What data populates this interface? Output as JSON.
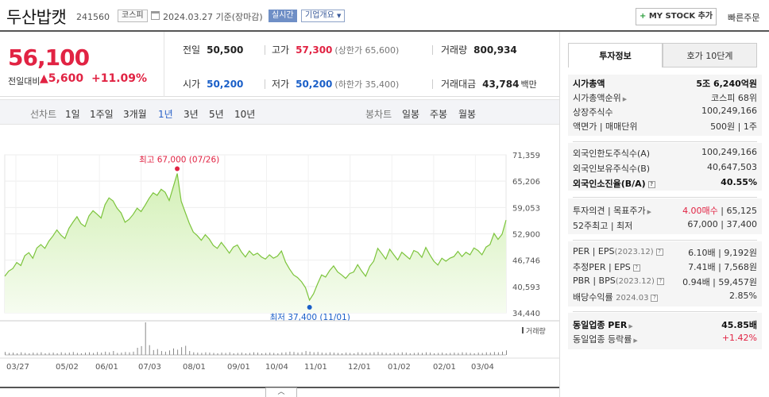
{
  "header": {
    "stock_name": "두산밥캣",
    "stock_code": "241560",
    "market": "코스피",
    "date_text": "2024.03.27 기준(장마감)",
    "realtime": "실시간",
    "company_info": "기업개요",
    "mystock_plus": "+",
    "mystock": "MY STOCK 추가",
    "quick_order": "빠른주문"
  },
  "price": {
    "current": "56,100",
    "change_label": "전일대비",
    "change_arrow": "▲",
    "change_value": "5,600",
    "change_pct": "+11.09%"
  },
  "stats": {
    "prev_close_label": "전일",
    "prev_close": "50,500",
    "high_label": "고가",
    "high": "57,300",
    "high_sub": "(상한가 65,600)",
    "volume_label": "거래량",
    "volume": "800,934",
    "open_label": "시가",
    "open": "50,200",
    "low_label": "저가",
    "low": "50,200",
    "low_sub": "(하한가 35,400)",
    "amount_label": "거래대금",
    "amount": "43,784",
    "amount_unit": "백만"
  },
  "tabs": {
    "line_label": "선차트",
    "line_items": [
      "1일",
      "1주일",
      "3개월",
      "1년",
      "3년",
      "5년",
      "10년"
    ],
    "active": "1년",
    "candle_label": "봉차트",
    "candle_items": [
      "일봉",
      "주봉",
      "월봉"
    ]
  },
  "chart_data": {
    "type": "area",
    "y_ticks": [
      "71,359",
      "65,206",
      "59,053",
      "52,900",
      "46,746",
      "40,593",
      "34,440"
    ],
    "ylim": [
      34440,
      71359
    ],
    "x_ticks": [
      "03/27",
      "05/02",
      "06/01",
      "07/03",
      "08/01",
      "09/01",
      "10/04",
      "11/01",
      "12/01",
      "01/02",
      "02/01",
      "03/04"
    ],
    "series": [
      {
        "values": [
          43000,
          44200,
          44800,
          46200,
          45500,
          47800,
          48500,
          47200,
          49600,
          50400,
          49500,
          51200,
          52400,
          53800,
          52600,
          51800,
          54200,
          55600,
          56900,
          55300,
          54600,
          57100,
          58300,
          57500,
          56600,
          59700,
          61300,
          60600,
          58900,
          57800,
          55600,
          56300,
          57400,
          58900,
          58100,
          59600,
          61200,
          62500,
          61900,
          63300,
          62600,
          60700,
          63800,
          67000,
          60500,
          57900,
          55400,
          53300,
          52500,
          51400,
          52700,
          51700,
          50200,
          49500,
          50900,
          49700,
          48400,
          49800,
          50300,
          48700,
          47500,
          48900,
          47900,
          48400,
          47500,
          47000,
          48000,
          47200,
          47700,
          48900,
          46300,
          44700,
          43300,
          42700,
          41700,
          40300,
          37400,
          38900,
          41200,
          43300,
          42800,
          44300,
          45400,
          44000,
          43300,
          42500,
          43600,
          44000,
          45700,
          44200,
          43000,
          45300,
          46500,
          49500,
          48300,
          47000,
          49300,
          48000,
          46800,
          48600,
          47800,
          47000,
          49000,
          48600,
          47400,
          49700,
          48000,
          46500,
          45600,
          47200,
          46500,
          47200,
          47600,
          48800,
          47600,
          48600,
          48000,
          49600,
          49000,
          48000,
          49800,
          50400,
          53000,
          51600,
          52800,
          56100
        ]
      }
    ],
    "high_label": "최고 67,000 (07/26)",
    "low_label": "최저 37,400 (11/01)",
    "volume_legend": "거래량",
    "volume": [
      0.09,
      0.06,
      0.07,
      0.05,
      0.08,
      0.06,
      0.05,
      0.07,
      0.06,
      0.08,
      0.05,
      0.06,
      0.07,
      0.05,
      0.08,
      0.06,
      0.07,
      0.09,
      0.06,
      0.05,
      0.07,
      0.08,
      0.06,
      0.09,
      0.07,
      0.1,
      0.08,
      0.12,
      0.06,
      0.07,
      0.09,
      0.08,
      0.1,
      0.22,
      0.27,
      1.0,
      0.3,
      0.15,
      0.18,
      0.12,
      0.1,
      0.14,
      0.2,
      0.16,
      0.24,
      0.28,
      0.12,
      0.08,
      0.07,
      0.06,
      0.08,
      0.07,
      0.06,
      0.05,
      0.07,
      0.06,
      0.08,
      0.05,
      0.06,
      0.07,
      0.05,
      0.06,
      0.08,
      0.07,
      0.05,
      0.06,
      0.07,
      0.06,
      0.05,
      0.07,
      0.08,
      0.1,
      0.09,
      0.07,
      0.08,
      0.12,
      0.1,
      0.08,
      0.09,
      0.07,
      0.06,
      0.08,
      0.07,
      0.06,
      0.05,
      0.07,
      0.06,
      0.05,
      0.08,
      0.07,
      0.06,
      0.07,
      0.08,
      0.09,
      0.07,
      0.06,
      0.05,
      0.07,
      0.06,
      0.08,
      0.07,
      0.05,
      0.06,
      0.07,
      0.06,
      0.08,
      0.07,
      0.05,
      0.06,
      0.07,
      0.05,
      0.06,
      0.07,
      0.06,
      0.08,
      0.07,
      0.06,
      0.05,
      0.07,
      0.06,
      0.08,
      0.07,
      0.09,
      0.08,
      0.1,
      0.14
    ],
    "colors": {
      "line": "#7cc43c",
      "fill_top": "#d3f0b6",
      "fill_bottom": "#f6fcf0",
      "high": "#e12343",
      "low": "#1a5fc8",
      "volume": "#888888"
    }
  },
  "right": {
    "tab_invest": "투자정보",
    "tab_quote": "호가 10단계",
    "market_cap_label": "시가총액",
    "market_cap": "5조 6,240억원",
    "market_cap_rank_label": "시가총액순위",
    "market_cap_rank": "코스피 68위",
    "shares_label": "상장주식수",
    "shares": "100,249,166",
    "par_label": "액면가 | 매매단위",
    "par": "500원 | 1주",
    "foreign_limit_label": "외국인한도주식수(A)",
    "foreign_limit": "100,249,166",
    "foreign_hold_label": "외국인보유주식수(B)",
    "foreign_hold": "40,647,503",
    "foreign_rate_label": "외국인소진율(B/A)",
    "foreign_rate": "40.55%",
    "opinion_label": "투자의견 | 목표주가",
    "opinion": "4.00매수",
    "target": "| 65,125",
    "w52_label": "52주최고 | 최저",
    "w52": "67,000 | 37,400",
    "per_label": "PER | EPS",
    "per_year": "(2023.12)",
    "per": "6.10배 | 9,192원",
    "est_per_label": "추정PER | EPS",
    "est_per": "7.41배 | 7,568원",
    "pbr_label": "PBR | BPS",
    "pbr_year": "(2023.12)",
    "pbr": "0.94배 | 59,457원",
    "div_label": "배당수익률",
    "div_year": "2024.03",
    "div": "2.85%",
    "sector_per_label": "동일업종 PER",
    "sector_per": "45.85배",
    "sector_rate_label": "동일업종 등락률",
    "sector_rate": "+1.42%"
  },
  "collapse": "︿"
}
